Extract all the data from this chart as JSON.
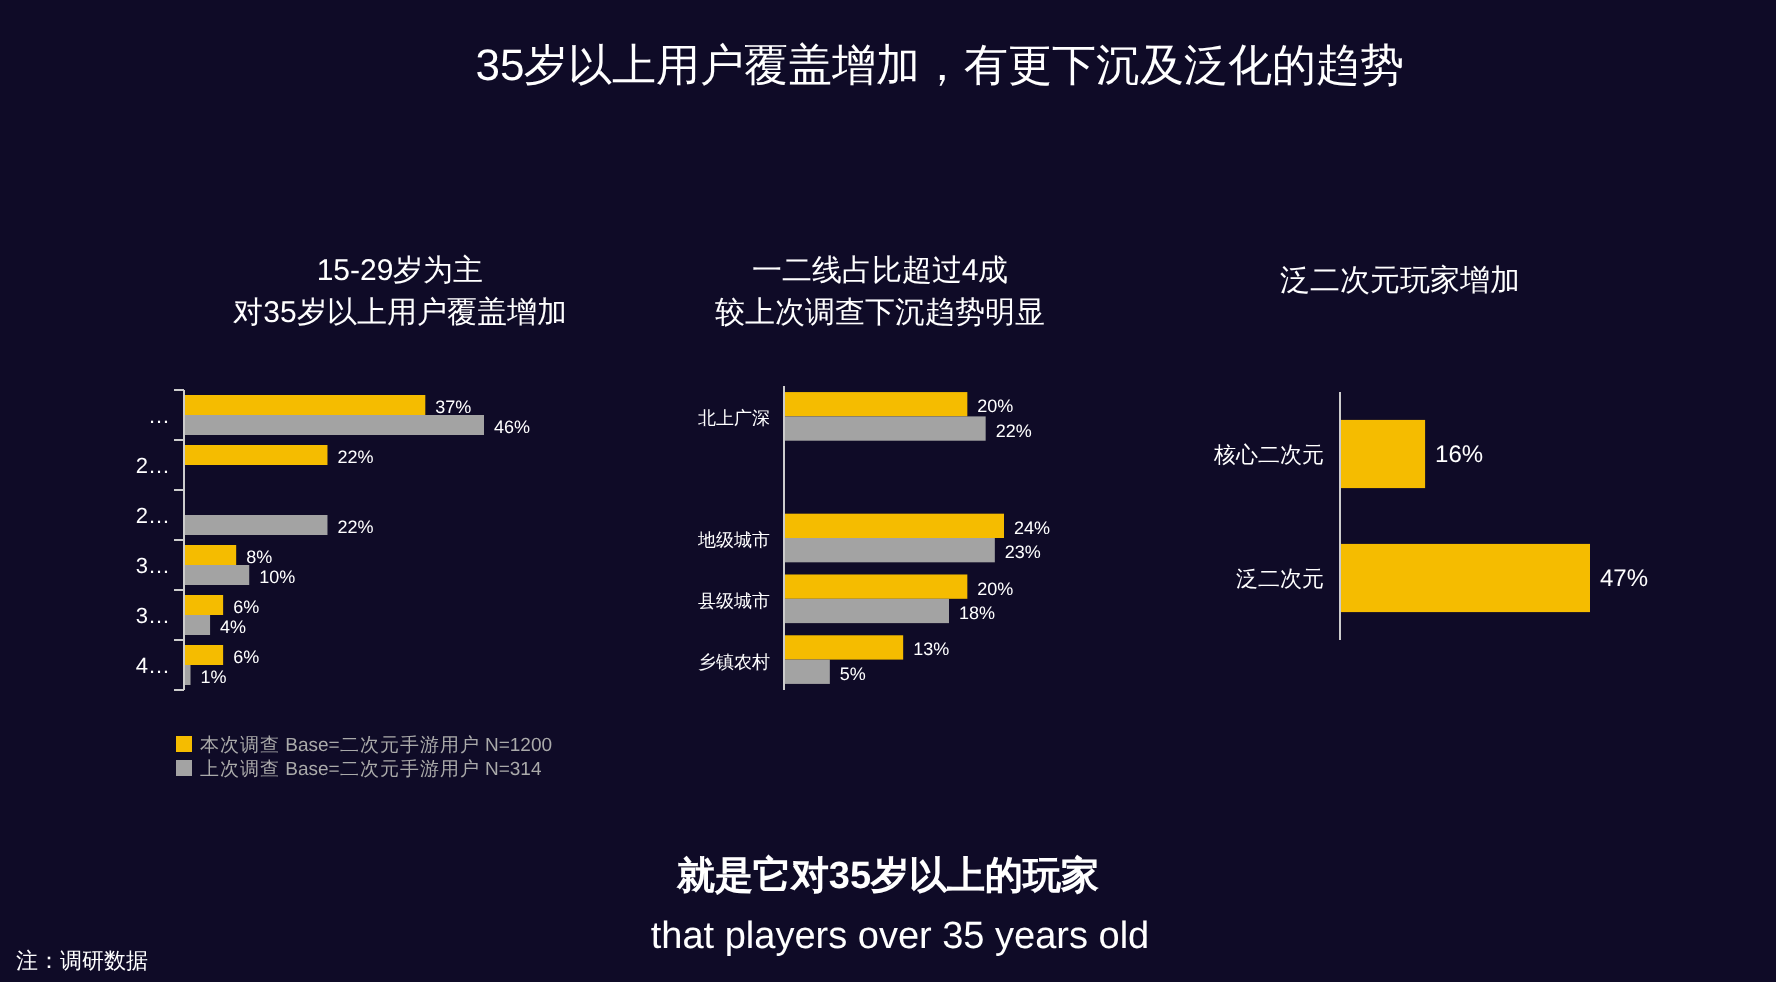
{
  "chart_data": [
    {
      "type": "bar",
      "orientation": "horizontal",
      "title": "15-29岁为主",
      "subtitle": "对35岁以上用户覆盖增加",
      "categories": [
        "…",
        "2…",
        "2…",
        "3…",
        "3…",
        "4…"
      ],
      "series": [
        {
          "name": "本次调查 Base=二次元手游用户 N=1200",
          "color": "#f5bc00",
          "values": [
            37,
            22,
            null,
            8,
            6,
            6
          ],
          "value_labels": [
            "37%",
            "22%",
            null,
            "8%",
            "6%",
            "6%"
          ]
        },
        {
          "name": "上次调查 Base=二次元手游用户 N=314",
          "color": "#a3a3a3",
          "values": [
            46,
            null,
            22,
            10,
            4,
            1
          ],
          "value_labels": [
            "46%",
            null,
            "22%",
            "10%",
            "4%",
            "1%"
          ]
        }
      ],
      "legend": "bottom",
      "annotations": [
        "35岁以上用户覆盖增加，有更下沉及泛化的趋势",
        "就是它对35岁以上的玩家",
        "that players over 35 years old",
        "注：调研数据"
      ]
    },
    {
      "type": "bar",
      "orientation": "horizontal",
      "title": "一二线占比超过4成",
      "subtitle": "较上次调查下沉趋势明显",
      "categories": [
        "北上广深",
        null,
        "地级城市",
        "县级城市",
        "乡镇农村"
      ],
      "series": [
        {
          "color": "#f5bc00",
          "values": [
            20,
            null,
            24,
            20,
            13
          ],
          "value_labels": [
            "20%",
            null,
            "24%",
            "20%",
            "13%"
          ]
        },
        {
          "color": "#a3a3a3",
          "values": [
            22,
            null,
            23,
            18,
            5
          ],
          "value_labels": [
            "22%",
            null,
            "23%",
            "18%",
            "5%"
          ]
        }
      ]
    },
    {
      "type": "bar",
      "orientation": "horizontal",
      "title": "泛二次元玩家增加",
      "categories": [
        "核心二次元",
        "泛二次元"
      ],
      "series": [
        {
          "color": "#f5bc00",
          "values": [
            16,
            47
          ],
          "value_labels": [
            "16%",
            "47%"
          ]
        }
      ]
    }
  ]
}
